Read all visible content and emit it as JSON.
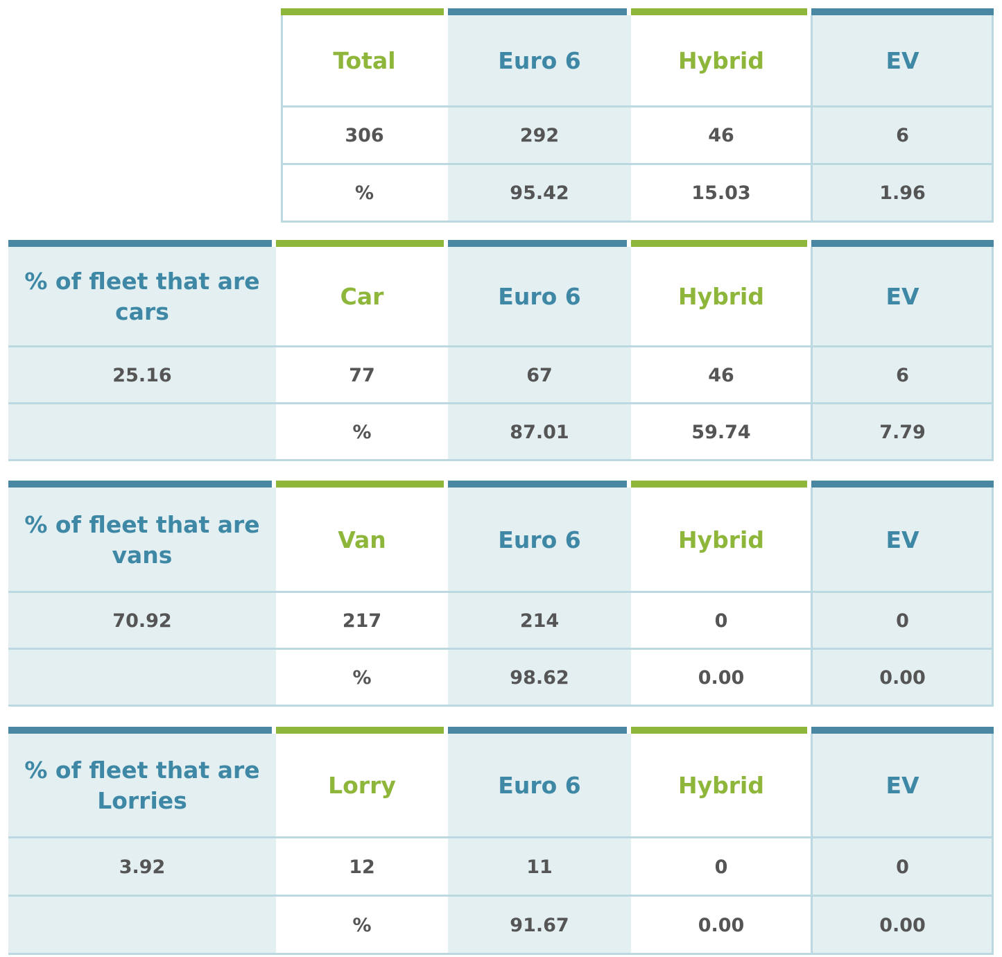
{
  "tables": [
    {
      "key": "total",
      "side": null,
      "columns": [
        "Total",
        "Euro 6",
        "Hybrid",
        "EV"
      ],
      "counts": [
        "306",
        "292",
        "46",
        "6"
      ],
      "percents": [
        "%",
        "95.42",
        "15.03",
        "1.96"
      ]
    },
    {
      "key": "cars",
      "side": {
        "heading": "% of fleet that are cars",
        "value": "25.16"
      },
      "columns": [
        "Car",
        "Euro 6",
        "Hybrid",
        "EV"
      ],
      "counts": [
        "77",
        "67",
        "46",
        "6"
      ],
      "percents": [
        "%",
        "87.01",
        "59.74",
        "7.79"
      ]
    },
    {
      "key": "vans",
      "side": {
        "heading": "% of fleet that are vans",
        "value": "70.92"
      },
      "columns": [
        "Van",
        "Euro 6",
        "Hybrid",
        "EV"
      ],
      "counts": [
        "217",
        "214",
        "0",
        "0"
      ],
      "percents": [
        "%",
        "98.62",
        "0.00",
        "0.00"
      ]
    },
    {
      "key": "lorries",
      "side": {
        "heading": "% of fleet that are Lorries",
        "value": "3.92"
      },
      "columns": [
        "Lorry",
        "Euro 6",
        "Hybrid",
        "EV"
      ],
      "counts": [
        "12",
        "11",
        "0",
        "0"
      ],
      "percents": [
        "%",
        "91.67",
        "0.00",
        "0.00"
      ]
    }
  ],
  "colors": {
    "accent_blue": "#4a87a3",
    "accent_green": "#8db63b",
    "header_blue_text": "#3e88a6",
    "shade": "#e4eff2",
    "value_text": "#555555"
  }
}
